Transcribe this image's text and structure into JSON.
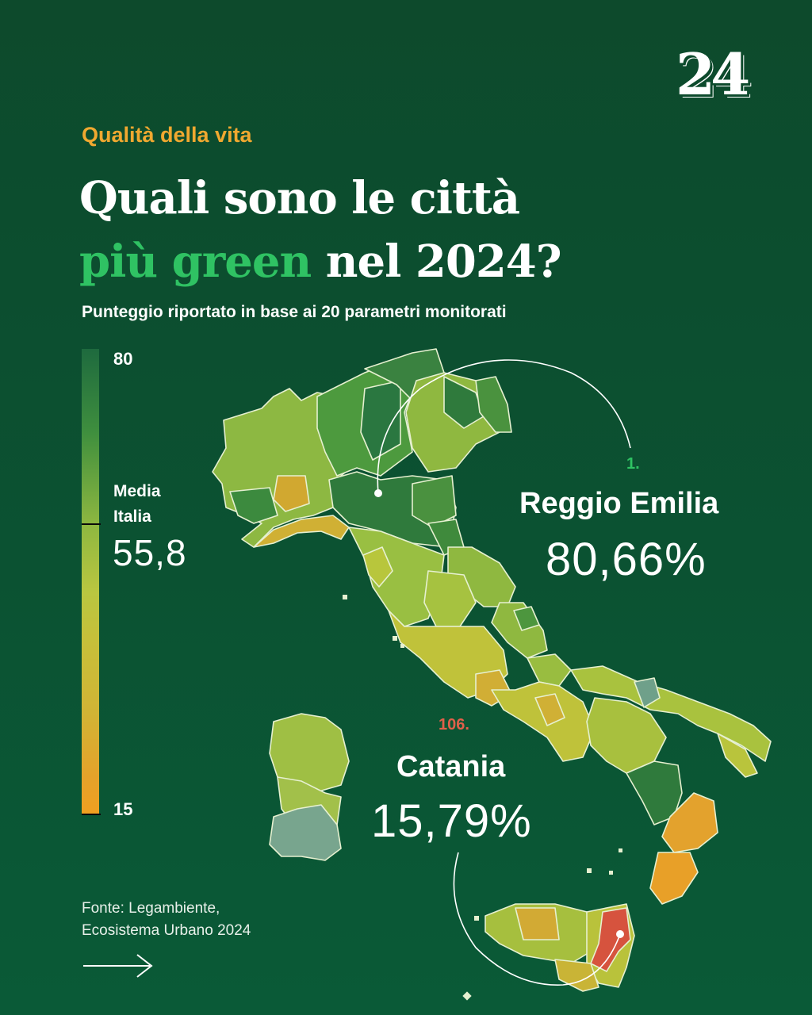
{
  "logo": "24",
  "kicker": "Qualità della vita",
  "title": {
    "line1": "Quali sono le città",
    "highlight": "più green",
    "line2_rest": " nel 2024?"
  },
  "subtitle": "Punteggio riportato in base ai 20 parametri monitorati",
  "scale": {
    "max": "80",
    "min": "15",
    "media_label": "Media Italia",
    "media_value": "55,8"
  },
  "top_city": {
    "rank": "1.",
    "name": "Reggio Emilia",
    "value": "80,66%"
  },
  "bottom_city": {
    "rank": "106.",
    "name": "Catania",
    "value": "15,79%"
  },
  "source": "Fonte: Legambiente, Ecosistema Urbano 2024",
  "colors": {
    "background": "#0b5232",
    "accent_orange": "#f0a830",
    "accent_green": "#2fc263",
    "accent_red": "#e0604a",
    "high_score": "#2f7a3c",
    "low_score": "#f0a020"
  },
  "icons": {
    "next": "arrow-right-icon"
  }
}
